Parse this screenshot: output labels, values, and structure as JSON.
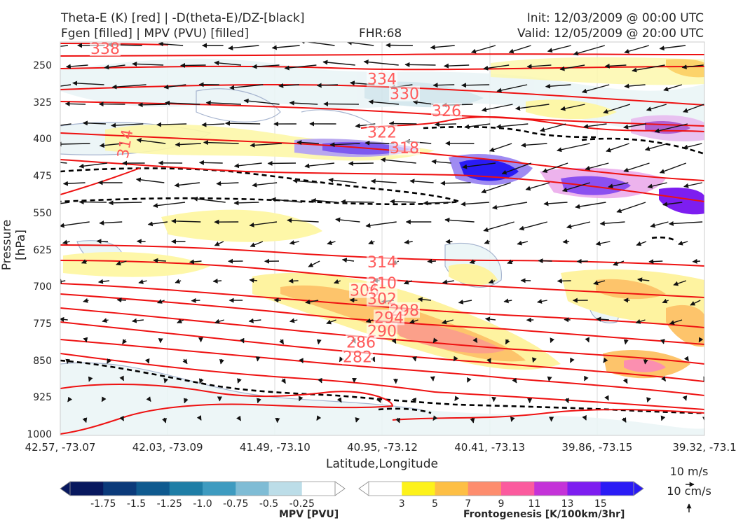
{
  "header": {
    "title_line1": "Theta-E (K) [red] | -D(theta-E)/DZ-[black]",
    "title_line2": "Fgen [filled] | MPV (PVU) [filled]",
    "fhr": "FHR:68",
    "init": "Init: 12/03/2009 @ 00:00 UTC",
    "valid": "Valid: 12/05/2009 @ 20:00 UTC"
  },
  "chart_data": {
    "type": "cross-section",
    "xlabel": "Latitude,Longitude",
    "ylabel": "Pressure [hPa]",
    "x_ticks": [
      "42.57, -73.07",
      "42.03, -73.09",
      "41.49, -73.10",
      "40.95, -73.12",
      "40.41, -73.13",
      "39.86, -73.15",
      "39.32, -73.1"
    ],
    "y_ticks": [
      250,
      325,
      400,
      475,
      550,
      625,
      700,
      775,
      850,
      925,
      1000
    ],
    "ylim": [
      1000,
      210
    ],
    "theta_e_contours": [
      {
        "label": "334",
        "pressure": 275
      },
      {
        "label": "330",
        "pressure": 305
      },
      {
        "label": "326",
        "pressure": 340
      },
      {
        "label": "322",
        "pressure": 383
      },
      {
        "label": "318",
        "pressure": 415
      },
      {
        "label": "314",
        "pressure": 407
      },
      {
        "label": "314",
        "pressure": 647
      },
      {
        "label": "310",
        "pressure": 690
      },
      {
        "label": "306",
        "pressure": 705
      },
      {
        "label": "302",
        "pressure": 722
      },
      {
        "label": "298",
        "pressure": 745
      },
      {
        "label": "294",
        "pressure": 760
      },
      {
        "label": "290",
        "pressure": 787
      },
      {
        "label": "286",
        "pressure": 810
      },
      {
        "label": "282",
        "pressure": 840
      },
      {
        "label": "338",
        "pressure": 213
      }
    ],
    "mpv_colorbar": {
      "title": "MPV [PVU]",
      "ticks": [
        "-1.75",
        "-1.5",
        "-1.25",
        "-1.0",
        "-0.75",
        "-0.5",
        "-0.25"
      ],
      "colors": [
        "#08185e",
        "#0b3a7a",
        "#0f5a8f",
        "#1f7ea6",
        "#3e9bc0",
        "#7fbcd5",
        "#bcdde8",
        "#ffffff"
      ]
    },
    "fgen_colorbar": {
      "title": "Frontogenesis [K/100km/3hr]",
      "ticks": [
        "3",
        "5",
        "7",
        "9",
        "11",
        "13",
        "15"
      ],
      "colors": [
        "#ffffff",
        "#fdf21a",
        "#fdbf45",
        "#fd8d6e",
        "#fb5b9e",
        "#c433d8",
        "#7d1ef0",
        "#2a1bf5"
      ]
    },
    "vector_key": {
      "horizontal": "10 m/s",
      "vertical": "10 cm/s"
    },
    "colors": {
      "theta_e": "#ee1111",
      "label": "#ff5a5a",
      "dtheta_dz": "#000000",
      "mpv_outline": "#a6b4cf"
    }
  }
}
